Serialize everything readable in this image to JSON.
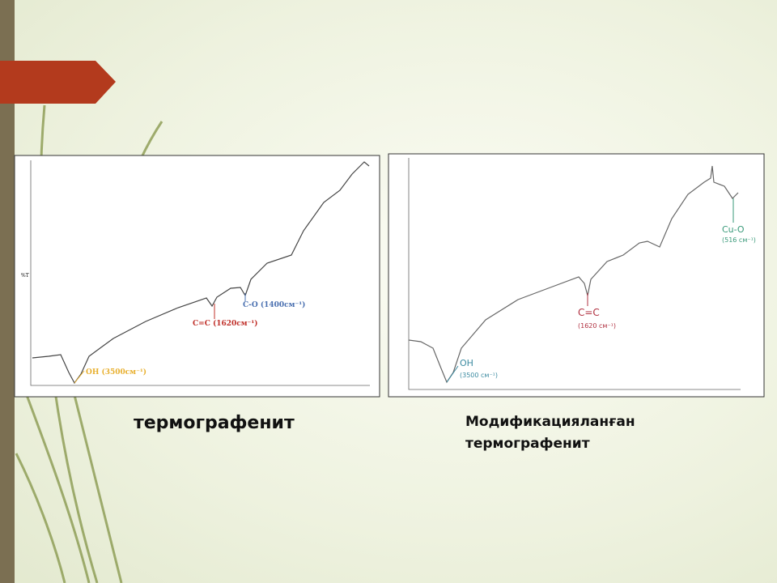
{
  "slide": {
    "figures": [
      {
        "y_label": "%T",
        "annotations": [
          "OH (3500см⁻¹)",
          "C=C (1620см⁻¹)",
          "C-O (1400см⁻¹)"
        ],
        "caption": [
          "термографенит"
        ]
      },
      {
        "annotations": [
          "OH",
          "(3500 см⁻¹)",
          "C=C",
          "(1620 см⁻¹)",
          "Cu-O",
          "(516 см⁻¹)"
        ],
        "caption": [
          "Модификацияланған",
          "термографенит"
        ]
      }
    ]
  }
}
